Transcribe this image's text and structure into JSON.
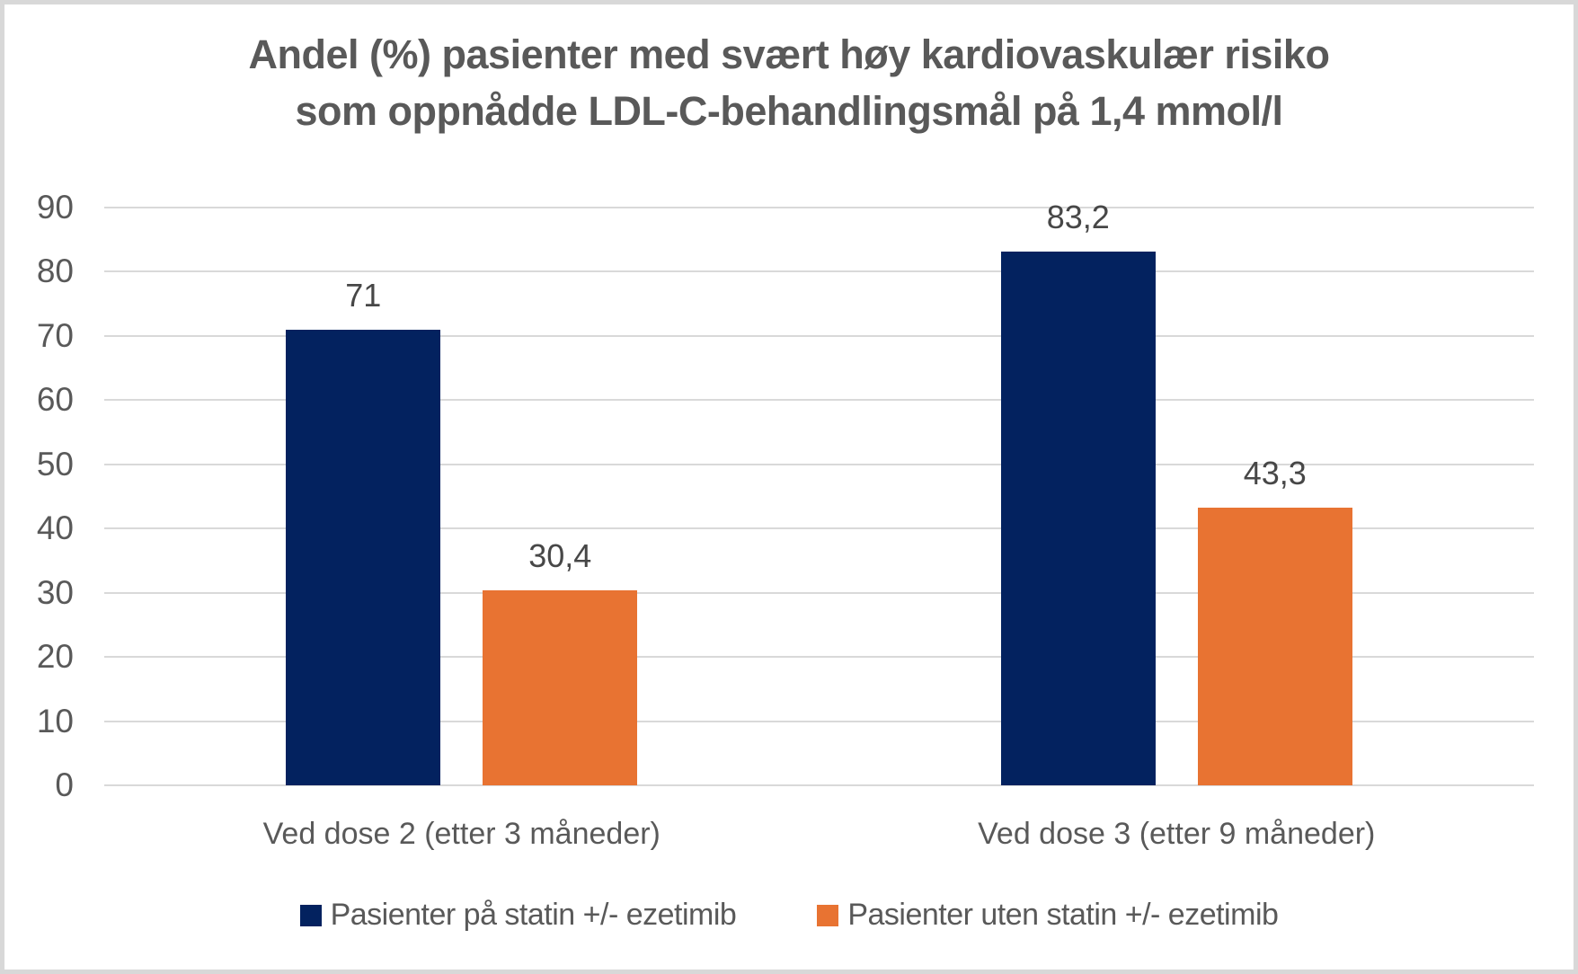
{
  "frame": {
    "background": "#ffffff",
    "border_color": "#d8d8d8"
  },
  "title": {
    "line1": "Andel (%) pasienter med svært høy kardiovaskulær risiko",
    "line2": "som oppnådde LDL-C-behandlingsmål på 1,4 mmol/l",
    "color": "#595959"
  },
  "chart_data": {
    "type": "bar",
    "grouped": true,
    "title": "Andel (%) pasienter med svært høy kardiovaskulær risiko som oppnådde LDL-C-behandlingsmål på 1,4 mmol/l",
    "categories": [
      "Ved dose 2 (etter 3 måneder)",
      "Ved dose 3 (etter 9 måneder)"
    ],
    "series": [
      {
        "name": "Pasienter på statin +/- ezetimib",
        "color": "#03225F",
        "values": [
          71,
          83.2
        ],
        "labels": [
          "71",
          "83,2"
        ]
      },
      {
        "name": "Pasienter uten statin +/- ezetimib",
        "color": "#E87332",
        "values": [
          30.4,
          43.3
        ],
        "labels": [
          "30,4",
          "43,3"
        ]
      }
    ],
    "xlabel": "",
    "ylabel": "",
    "ylim": [
      0,
      90
    ],
    "ytick_step": 10,
    "ytick_labels": [
      "0",
      "10",
      "20",
      "30",
      "40",
      "50",
      "60",
      "70",
      "80",
      "90"
    ],
    "grid": true,
    "gridline_color": "#D9D9D9",
    "tick_label_color": "#595959",
    "category_label_color": "#595959",
    "data_label_color": "#474747",
    "legend_position": "bottom",
    "legend_text_color": "#595959"
  }
}
